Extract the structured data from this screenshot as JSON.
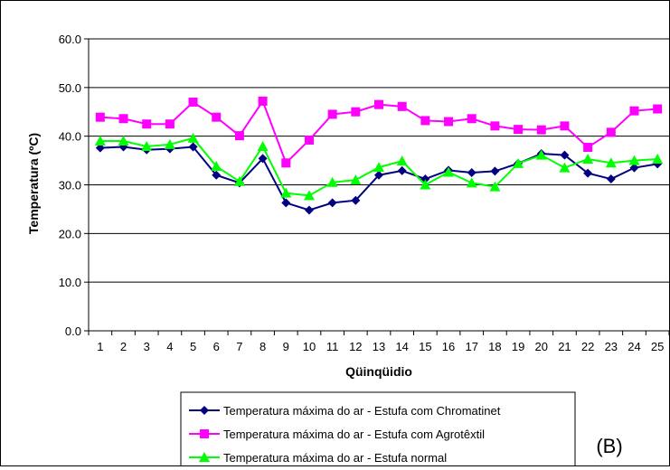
{
  "chart_data": {
    "type": "line",
    "xlabel": "Qüinqüidio",
    "ylabel": "Temperatura (ºC)",
    "ylim": [
      0,
      60
    ],
    "yticks": [
      "0.0",
      "10.0",
      "20.0",
      "30.0",
      "40.0",
      "50.0",
      "60.0"
    ],
    "categories": [
      "1",
      "2",
      "3",
      "4",
      "5",
      "6",
      "7",
      "8",
      "9",
      "10",
      "11",
      "12",
      "13",
      "14",
      "15",
      "16",
      "17",
      "18",
      "19",
      "20",
      "21",
      "22",
      "23",
      "24",
      "25"
    ],
    "panel_label": "(B)",
    "grid": "horizontal",
    "legend_position": "bottom",
    "series": [
      {
        "name": "Temperatura máxima do ar - Estufa com Chromatinet",
        "color": "#000080",
        "marker": "diamond",
        "values": [
          37.6,
          37.8,
          37.2,
          37.4,
          37.8,
          32.0,
          30.4,
          35.4,
          26.3,
          24.8,
          26.3,
          26.8,
          32.0,
          32.9,
          31.2,
          33.0,
          32.5,
          32.8,
          34.4,
          36.4,
          36.1,
          32.4,
          31.2,
          33.5,
          34.3
        ]
      },
      {
        "name": "Temperatura máxima do ar - Estufa com Agrotêxtil",
        "color": "#ff00ff",
        "marker": "square",
        "values": [
          43.9,
          43.6,
          42.5,
          42.5,
          47.0,
          43.9,
          40.1,
          47.2,
          34.5,
          39.2,
          44.5,
          45.0,
          46.5,
          46.1,
          43.2,
          43.0,
          43.6,
          42.1,
          41.4,
          41.3,
          42.1,
          37.7,
          40.8,
          45.2,
          45.6
        ]
      },
      {
        "name": "Temperatura máxima do ar - Estufa normal",
        "color": "#00ff00",
        "marker": "triangle",
        "values": [
          39.0,
          39.0,
          37.9,
          38.3,
          39.6,
          33.8,
          30.7,
          37.9,
          28.3,
          27.8,
          30.5,
          31.0,
          33.6,
          34.9,
          30.0,
          32.6,
          30.4,
          29.6,
          34.4,
          36.1,
          33.5,
          35.3,
          34.5,
          35.0,
          35.3
        ]
      }
    ]
  }
}
